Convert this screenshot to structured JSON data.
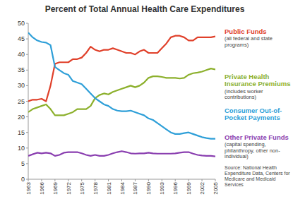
{
  "chart_data": {
    "type": "line",
    "title": "Percent of Total Annual Health Care Expenditures",
    "x": [
      1963,
      1964,
      1965,
      1966,
      1967,
      1968,
      1969,
      1970,
      1971,
      1972,
      1973,
      1974,
      1975,
      1976,
      1977,
      1978,
      1979,
      1980,
      1981,
      1982,
      1983,
      1984,
      1985,
      1986,
      1987,
      1988,
      1989,
      1990,
      1991,
      1992,
      1993,
      1994,
      1995,
      1996,
      1997,
      1998,
      1999,
      2000,
      2001,
      2002,
      2003,
      2004,
      2005
    ],
    "xlim": [
      1963,
      2005
    ],
    "xticks": [
      1963,
      1966,
      1969,
      1972,
      1975,
      1978,
      1981,
      1984,
      1987,
      1990,
      1993,
      1996,
      1999,
      2002,
      2005
    ],
    "ylim": [
      0,
      50
    ],
    "yticks": [
      0,
      5,
      10,
      15,
      20,
      25,
      30,
      35,
      40,
      45,
      50
    ],
    "grid": false,
    "series": [
      {
        "name": "Public Funds",
        "description": "(all federal and state programs)",
        "color": "#e0402a",
        "values": [
          25,
          25.5,
          25.5,
          25.8,
          25,
          30,
          37,
          37.5,
          37.5,
          37.5,
          38.5,
          38.5,
          39,
          40.5,
          42.5,
          41.5,
          41,
          41.5,
          41.5,
          42,
          41.5,
          41,
          40.5,
          40.5,
          40,
          41,
          41.5,
          40.5,
          40.5,
          40.5,
          42,
          43.5,
          45.5,
          46,
          46,
          45.5,
          44.5,
          44.5,
          45.5,
          45.5,
          45.5,
          45.5,
          45.8
        ]
      },
      {
        "name": "Private Health Insurance Premiums",
        "description": "(includes worker contributions)",
        "color": "#8cb02c",
        "values": [
          21.5,
          22.5,
          23,
          23.5,
          24,
          22.5,
          20.5,
          20.5,
          20.5,
          21,
          21.5,
          22.5,
          22.5,
          22.5,
          23.5,
          26,
          27,
          27.5,
          27.2,
          28,
          28.5,
          29,
          29.5,
          30,
          29.5,
          30,
          31,
          32.5,
          33,
          33,
          32.8,
          32.5,
          32.5,
          32.5,
          32.3,
          32.5,
          33.5,
          34,
          34.2,
          34.5,
          35,
          35.5,
          35.2
        ]
      },
      {
        "name": "Consumer Out-of-Pocket Payments",
        "color": "#2e9fd8",
        "values": [
          47,
          45.5,
          44.5,
          44,
          43.8,
          43,
          36,
          35,
          34,
          33.5,
          31.5,
          31,
          30.5,
          29,
          27.5,
          26,
          25,
          24,
          23.5,
          22.5,
          22,
          21.8,
          21.8,
          22,
          21.5,
          21,
          20.5,
          19.5,
          19,
          18,
          17,
          16,
          15,
          14.5,
          14.5,
          14.8,
          15,
          14.5,
          14,
          13.5,
          13.2,
          13,
          13
        ]
      },
      {
        "name": "Other Private Funds",
        "description": "(capital spending, philanthropy, other non-individual)",
        "color": "#8a3fb0",
        "values": [
          7.5,
          8,
          8.5,
          8.3,
          8.5,
          8.3,
          7.5,
          7.8,
          8.5,
          8.7,
          8.7,
          8.7,
          8.3,
          7.8,
          7.5,
          7.8,
          7.5,
          7.5,
          7.8,
          8.3,
          8.7,
          9,
          8.7,
          8.3,
          8.2,
          8.3,
          8.3,
          8.5,
          8.3,
          8.2,
          8.2,
          8.2,
          8.2,
          8.3,
          8.5,
          8.7,
          8.7,
          8.2,
          7.8,
          7.6,
          7.5,
          7.5,
          7.3
        ]
      }
    ],
    "legend": "right",
    "source": "Source: National Health Expenditure Data, Centers for Medicare and Medicaid Services"
  }
}
